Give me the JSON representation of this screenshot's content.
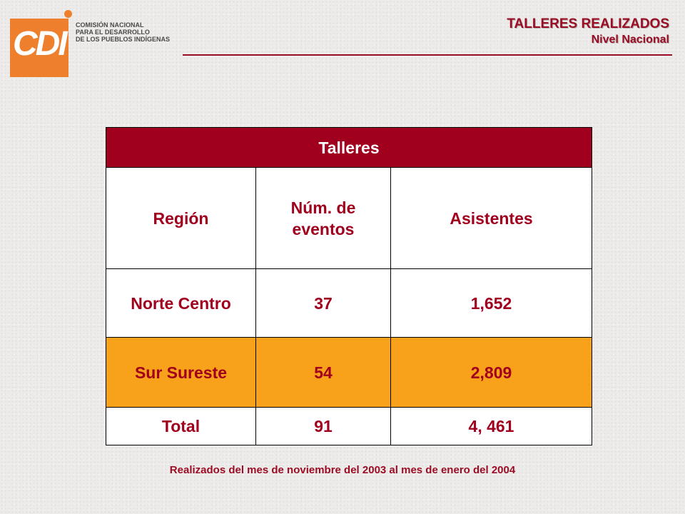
{
  "logo": {
    "letters": "CDI",
    "line1": "COMISIÓN NACIONAL",
    "line2": "PARA EL DESARROLLO",
    "line3": "DE LOS PUEBLOS INDÍGENAS"
  },
  "header": {
    "title": "TALLERES REALIZADOS",
    "subtitle": "Nivel Nacional"
  },
  "table": {
    "title": "Talleres",
    "columns": [
      "Región",
      "Núm. de eventos",
      "Asistentes"
    ],
    "rows": [
      [
        "Norte Centro",
        "37",
        "1,652"
      ],
      [
        "Sur Sureste",
        "54",
        "2,809"
      ],
      [
        "Total",
        "91",
        "4, 461"
      ]
    ]
  },
  "footnote": "Realizados del mes de noviembre del 2003 al mes de enero del 2004",
  "colors": {
    "accent": "#a0001e",
    "highlight_row": "#f7a21a",
    "logo_orange": "#ee7f2d"
  }
}
